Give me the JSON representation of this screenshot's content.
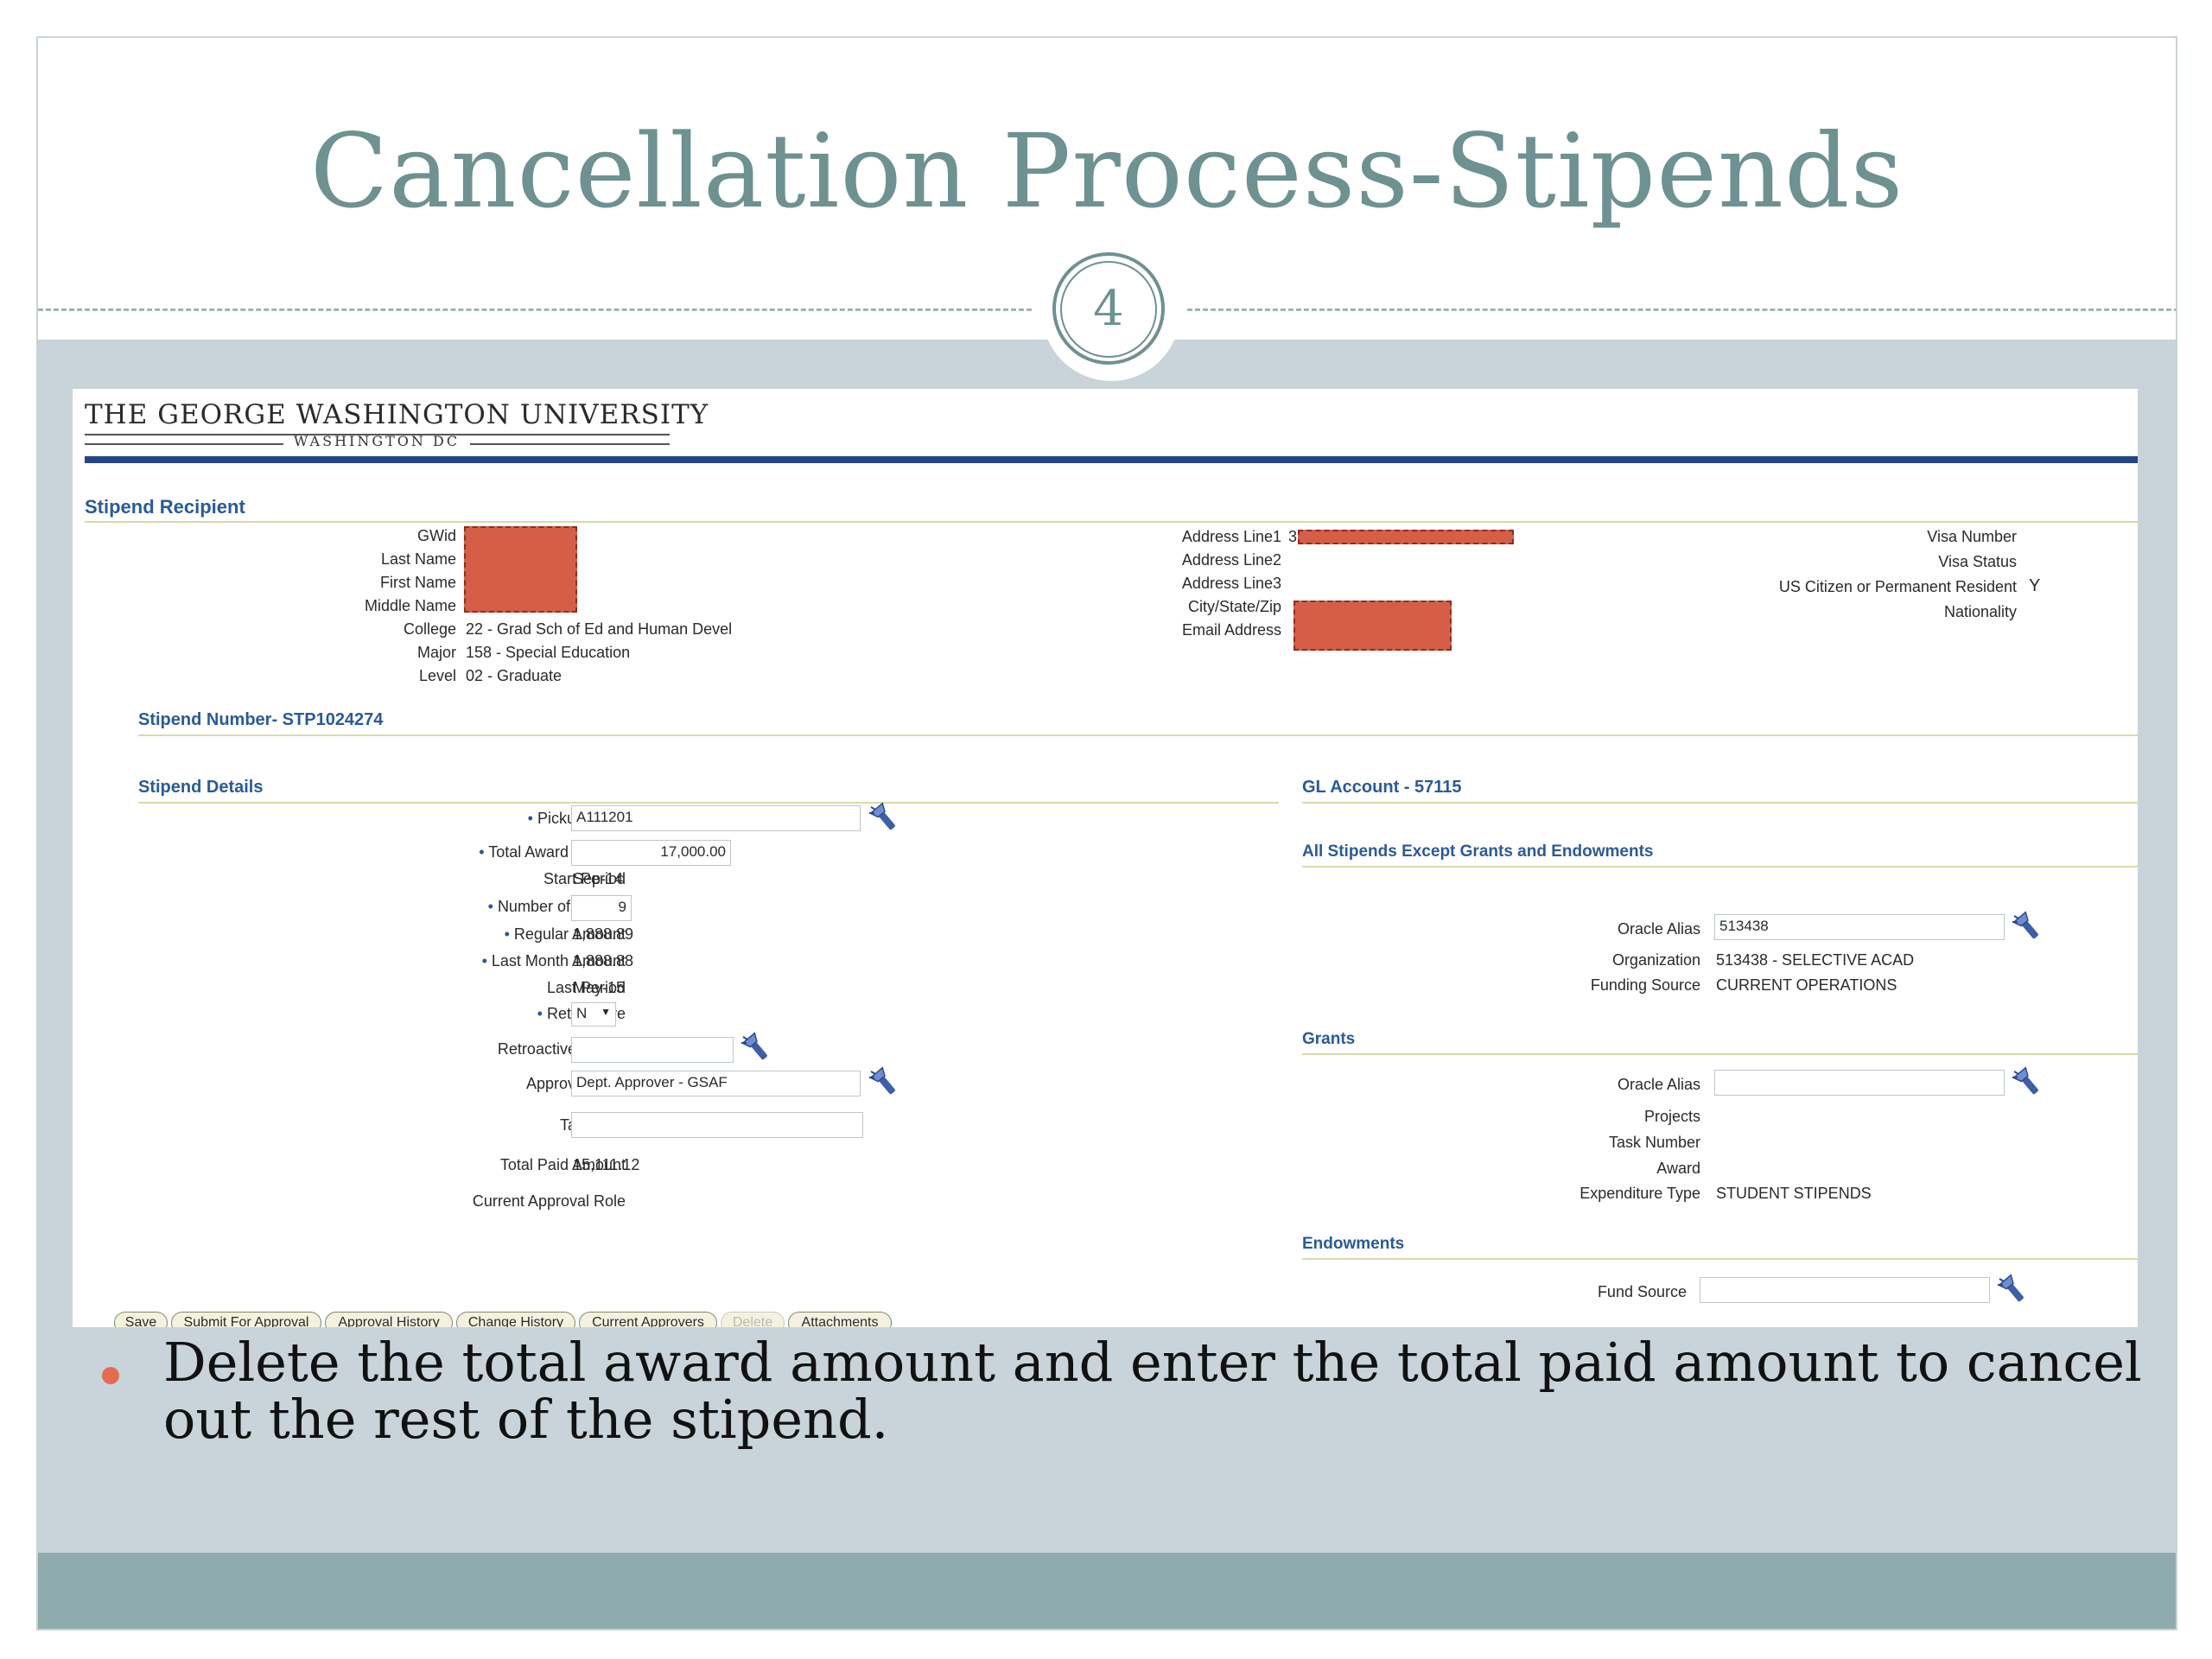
{
  "slide": {
    "title": "Cancellation Process-Stipends",
    "page_number": "4",
    "bullet": "Delete the total award amount and enter the total paid amount to cancel out the rest of the stipend."
  },
  "header": {
    "university": "THE GEORGE WASHINGTON UNIVERSITY",
    "location": "WASHINGTON DC"
  },
  "recipient": {
    "section_title": "Stipend Recipient",
    "gwid_label": "GWid",
    "last_name_label": "Last Name",
    "first_name_label": "First Name",
    "middle_name_label": "Middle Name",
    "college_label": "College",
    "college_value": "22 - Grad Sch of Ed and Human Devel",
    "major_label": "Major",
    "major_value": "158 - Special Education",
    "level_label": "Level",
    "level_value": "02 - Graduate",
    "address1_label": "Address Line1",
    "address1_value_partial": "3",
    "address2_label": "Address Line2",
    "address3_label": "Address Line3",
    "city_label": "City/State/Zip",
    "email_label": "Email Address",
    "visa_number_label": "Visa Number",
    "visa_status_label": "Visa Status",
    "citizen_label": "US Citizen or Permanent Resident",
    "citizen_value": "Y",
    "nationality_label": "Nationality"
  },
  "stipend_number": "Stipend Number- STP1024274",
  "details": {
    "section_title": "Stipend Details",
    "pickup_code_label": "Pickup Code",
    "pickup_code_value": "A111201",
    "total_award_label": "Total Award Amount",
    "total_award_value": "17,000.00",
    "start_period_label": "Start Period",
    "start_period_value": "Sep-14",
    "num_months_label": "Number of Months",
    "num_months_value": "9",
    "regular_amount_label": "Regular Amount",
    "regular_amount_value": "1,888.89",
    "last_month_label": "Last Month Amount",
    "last_month_value": "1,888.88",
    "last_period_label": "Last Period",
    "last_period_value": "May-15",
    "retroactive_label": "Retroactive",
    "retroactive_value": "N",
    "retro_period_label": "Retroactive Period",
    "approver_role_label": "Approver Role",
    "approver_role_value": "Dept. Approver - GSAF",
    "tax_code_label": "Tax Code",
    "total_paid_label": "Total Paid Amount",
    "total_paid_value": "15,111.12",
    "current_role_label": "Current Approval Role"
  },
  "gl": {
    "section_title": "GL Account - 57115",
    "all_stipends_title": "All Stipends Except Grants and Endowments",
    "oracle_alias_label": "Oracle Alias",
    "oracle_alias_value": "513438",
    "organization_label": "Organization",
    "organization_value": "513438 - SELECTIVE ACAD",
    "funding_source_label": "Funding Source",
    "funding_source_value": "CURRENT OPERATIONS",
    "grants_title": "Grants",
    "grants_oracle_label": "Oracle Alias",
    "projects_label": "Projects",
    "task_label": "Task Number",
    "award_label": "Award",
    "expenditure_label": "Expenditure Type",
    "expenditure_value": "STUDENT STIPENDS",
    "endowments_title": "Endowments",
    "fund_source_label": "Fund Source"
  },
  "buttons": {
    "save": "Save",
    "submit": "Submit For Approval",
    "approval_history": "Approval History",
    "change_history": "Change History",
    "current_approvers": "Current Approvers",
    "delete": "Delete",
    "attachments": "Attachments"
  },
  "colors": {
    "title": "#6e9191",
    "section_heading": "#2a5a9a",
    "redaction": "#d65e47",
    "bullet": "#e36d4f",
    "header_bar": "#24458a"
  },
  "icons": {
    "lookup": "flashlight-icon"
  }
}
